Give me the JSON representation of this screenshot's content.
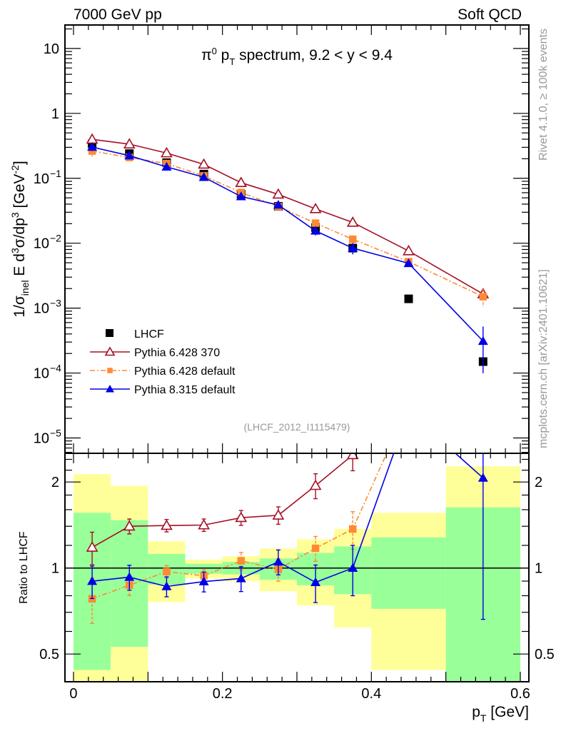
{
  "header": {
    "left": "7000 GeV pp",
    "right": "Soft QCD"
  },
  "side": {
    "rivet": "Rivet 4.1.0, ≥ 100k events",
    "mcplots": "mcplots.cern.ch [arXiv:2401.10621]"
  },
  "analysis_id": "(LHCF_2012_I1115479)",
  "chart_data": {
    "type": "line",
    "title_parts": [
      "π",
      "0",
      " p",
      "T",
      " spectrum, 9.2 < y < 9.4"
    ],
    "ylabel_parts": [
      "1/σ",
      "inel",
      " E d",
      "3",
      "σ/dp",
      "3",
      " [GeV",
      "-2",
      "]"
    ],
    "xlabel_parts": [
      "p",
      "T",
      " [GeV]"
    ],
    "ratio_ylabel": "Ratio to LHCF",
    "xlim": [
      -0.0115,
      0.6115
    ],
    "ylim": [
      5.8e-06,
      23
    ],
    "yscale": "log",
    "ratio_ylim": [
      0.4,
      2.52
    ],
    "ratio_yscale": "log",
    "xticks": [
      "0",
      "0.2",
      "0.4",
      "0.6"
    ],
    "xtick_values": [
      0,
      0.2,
      0.4,
      0.6
    ],
    "yticks": [
      1e-05,
      0.0001,
      0.001,
      0.01,
      0.1,
      1,
      10
    ],
    "ratio_ticks": [
      "0.5",
      "1",
      "2"
    ],
    "ratio_tick_values": [
      0.5,
      1,
      2
    ],
    "bin_edges": [
      0,
      0.05,
      0.1,
      0.15,
      0.2,
      0.25,
      0.3,
      0.35,
      0.4,
      0.5,
      0.6
    ],
    "x": [
      0.025,
      0.075,
      0.125,
      0.175,
      0.225,
      0.275,
      0.325,
      0.375,
      0.45,
      0.55
    ],
    "legend_position": "bottom-left",
    "data": {
      "name": "LHCF",
      "color": "#000000",
      "values": [
        0.337,
        0.24,
        0.174,
        0.116,
        0.057,
        0.037,
        0.0174,
        0.0084,
        0.00139,
        0.00015
      ],
      "band_stat": [
        [
          0.44,
          1.56
        ],
        [
          0.53,
          1.47
        ],
        [
          0.875,
          1.12
        ],
        [
          0.955,
          1.035
        ],
        [
          0.95,
          1.05
        ],
        [
          0.91,
          1.08
        ],
        [
          0.87,
          1.13
        ],
        [
          0.81,
          1.19
        ],
        [
          0.72,
          1.28
        ],
        [
          0.3,
          1.63
        ]
      ],
      "band_total": [
        [
          0.3,
          2.13
        ],
        [
          0.3,
          1.94
        ],
        [
          0.76,
          1.24
        ],
        [
          0.92,
          1.07
        ],
        [
          0.9,
          1.1
        ],
        [
          0.83,
          1.17
        ],
        [
          0.74,
          1.26
        ],
        [
          0.62,
          1.37
        ],
        [
          0.44,
          1.56
        ],
        [
          0.3,
          2.27
        ]
      ],
      "band_stat_color": "#99ff99",
      "band_total_color": "#ffff99"
    },
    "series": [
      {
        "name": "Pythia 6.428 370",
        "color": "#a50f24",
        "marker": "open-triangle",
        "dash": "",
        "values": [
          0.398,
          0.336,
          0.245,
          0.164,
          0.0855,
          0.0566,
          0.0338,
          0.0209,
          0.0076,
          0.00165
        ],
        "rel_err": [
          0.13,
          0.06,
          0.05,
          0.05,
          0.06,
          0.07,
          0.1,
          0.12,
          0.1,
          0.2
        ]
      },
      {
        "name": "Pythia 6.428 default",
        "color": "#ff8a33",
        "marker": "square",
        "dash": "7,3,2,3",
        "values": [
          0.263,
          0.209,
          0.169,
          0.109,
          0.0604,
          0.0366,
          0.0204,
          0.0115,
          0.0052,
          0.0015
        ],
        "rel_err": [
          0.18,
          0.08,
          0.05,
          0.05,
          0.07,
          0.09,
          0.1,
          0.15,
          0.1,
          0.3
        ]
      },
      {
        "name": "Pythia 8.315 default",
        "color": "#0000e6",
        "marker": "triangle",
        "dash": "",
        "values": [
          0.303,
          0.223,
          0.15,
          0.104,
          0.0524,
          0.0389,
          0.0155,
          0.0084,
          0.0049,
          0.00031
        ],
        "rel_err": [
          0.13,
          0.1,
          0.08,
          0.08,
          0.1,
          0.1,
          0.15,
          0.2,
          0.1,
          0.68
        ]
      }
    ]
  }
}
